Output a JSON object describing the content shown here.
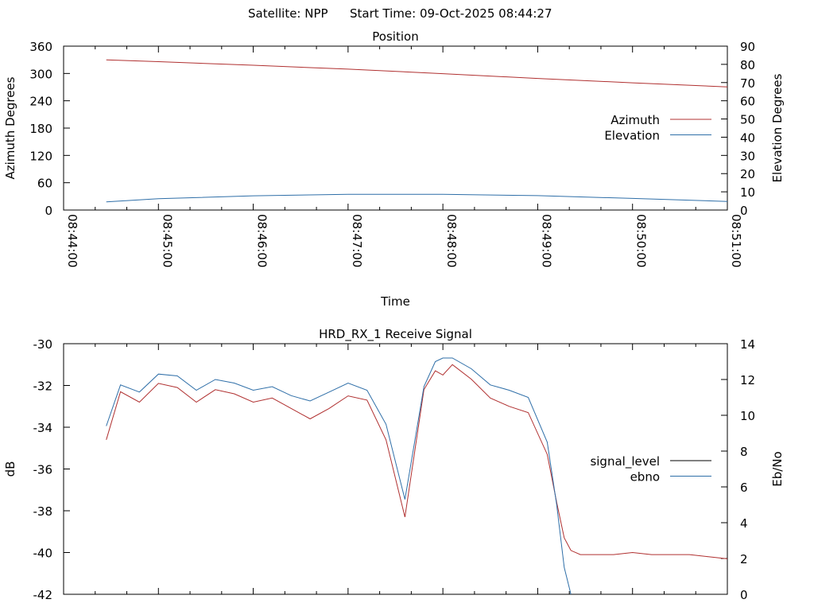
{
  "header": {
    "satellite_label": "Satellite: NPP",
    "start_time_label": "Start Time: 09-Oct-2025 08:44:27"
  },
  "chart_data": [
    {
      "type": "line",
      "title": "Position",
      "xlabel": "Time",
      "ylabel": "Azimuth Degrees",
      "y2label": "Elevation Degrees",
      "x_ticks": [
        "08:44:00",
        "08:45:00",
        "08:46:00",
        "08:47:00",
        "08:48:00",
        "08:49:00",
        "08:50:00",
        "08:51:00"
      ],
      "xlim": [
        "08:44:00",
        "08:51:00"
      ],
      "ylim": [
        0,
        360
      ],
      "y_ticks": [
        0,
        60,
        120,
        180,
        240,
        300,
        360
      ],
      "y2lim": [
        0,
        90
      ],
      "y2_ticks": [
        0,
        10,
        20,
        30,
        40,
        50,
        60,
        70,
        80,
        90
      ],
      "legend_position": "right",
      "series": [
        {
          "name": "Azimuth",
          "axis": "left",
          "color": "#b03030",
          "x_minutes": [
            0.45,
            1,
            2,
            3,
            4,
            5,
            6,
            7
          ],
          "values": [
            330.0,
            326.0,
            318.0,
            309.5,
            299.5,
            289.0,
            279.5,
            270.5
          ]
        },
        {
          "name": "Elevation",
          "axis": "right",
          "color": "#2f6fa8",
          "x_minutes": [
            0.45,
            1,
            2,
            3,
            4,
            5,
            6,
            7
          ],
          "values": [
            4.5,
            6.2,
            7.8,
            8.6,
            8.6,
            7.9,
            6.4,
            4.7
          ]
        }
      ]
    },
    {
      "type": "line",
      "title": "HRD_RX_1 Receive Signal",
      "xlabel": "",
      "ylabel": "dB",
      "y2label": "Eb/No",
      "ylim": [
        -42,
        -30
      ],
      "y_ticks": [
        -30,
        -32,
        -34,
        -36,
        -38,
        -40,
        -42
      ],
      "y2lim": [
        0,
        14
      ],
      "y2_ticks": [
        0,
        2,
        4,
        6,
        8,
        10,
        12,
        14
      ],
      "xlim_minutes": [
        0,
        7
      ],
      "legend_position": "right",
      "series": [
        {
          "name": "signal_level",
          "axis": "left",
          "color": "#b03030",
          "legend_color": "#000000",
          "x_minutes": [
            0.45,
            0.6,
            0.8,
            1.0,
            1.2,
            1.4,
            1.6,
            1.8,
            2.0,
            2.2,
            2.4,
            2.6,
            2.8,
            3.0,
            3.2,
            3.4,
            3.6,
            3.8,
            3.92,
            4.0,
            4.1,
            4.3,
            4.5,
            4.7,
            4.9,
            5.1,
            5.2,
            5.28,
            5.35,
            5.45,
            5.6,
            5.8,
            6.0,
            6.2,
            6.4,
            6.6,
            6.8,
            7.0
          ],
          "values": [
            -34.6,
            -32.3,
            -32.8,
            -31.9,
            -32.1,
            -32.8,
            -32.2,
            -32.4,
            -32.8,
            -32.6,
            -33.1,
            -33.6,
            -33.1,
            -32.5,
            -32.7,
            -34.6,
            -38.3,
            -32.2,
            -31.3,
            -31.5,
            -31.0,
            -31.7,
            -32.6,
            -33.0,
            -33.3,
            -35.3,
            -37.6,
            -39.3,
            -39.9,
            -40.1,
            -40.1,
            -40.1,
            -40.0,
            -40.1,
            -40.1,
            -40.1,
            -40.2,
            -40.3
          ]
        },
        {
          "name": "ebno",
          "axis": "right",
          "color": "#2f6fa8",
          "x_minutes": [
            0.45,
            0.6,
            0.8,
            1.0,
            1.2,
            1.4,
            1.6,
            1.8,
            2.0,
            2.2,
            2.4,
            2.6,
            2.8,
            3.0,
            3.2,
            3.4,
            3.6,
            3.8,
            3.92,
            4.0,
            4.1,
            4.3,
            4.5,
            4.7,
            4.9,
            5.1,
            5.2,
            5.28,
            5.35
          ],
          "values": [
            9.4,
            11.7,
            11.3,
            12.3,
            12.2,
            11.4,
            12.0,
            11.8,
            11.4,
            11.6,
            11.1,
            10.8,
            11.3,
            11.8,
            11.4,
            9.5,
            5.3,
            11.6,
            13.0,
            13.2,
            13.2,
            12.6,
            11.7,
            11.4,
            11.0,
            8.5,
            5.0,
            1.5,
            0.0
          ]
        }
      ]
    }
  ]
}
